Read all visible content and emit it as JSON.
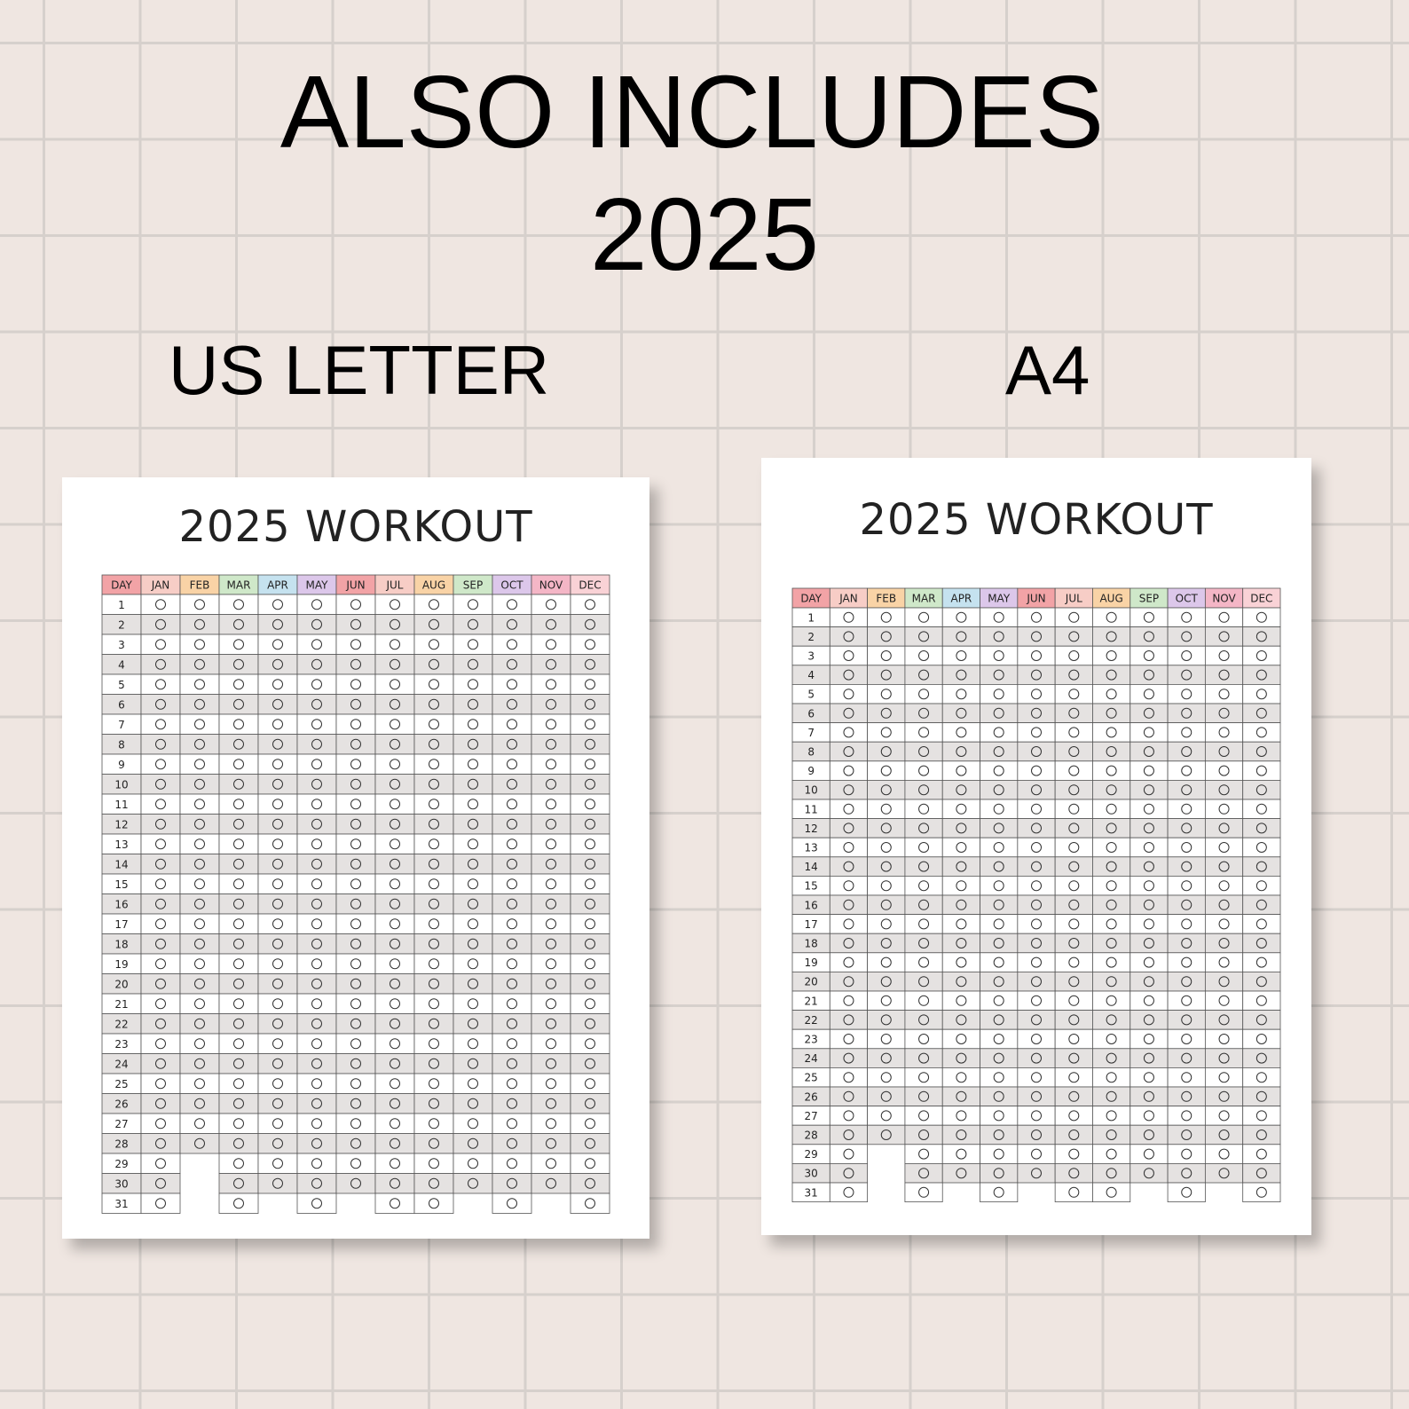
{
  "headline": {
    "line1": "ALSO INCLUDES",
    "line2": "2025"
  },
  "formats": {
    "us_letter": "US LETTER",
    "a4": "A4"
  },
  "days_in_month": [
    31,
    28,
    31,
    30,
    31,
    30,
    31,
    31,
    30,
    31,
    30,
    31
  ],
  "header_colors": [
    "#f2a3a6",
    "#f7cdc6",
    "#f9d3a6",
    "#cfe8c9",
    "#c5e2ef",
    "#dcc7ea",
    "#f2a3a6",
    "#f7cdc6",
    "#f9d3a6",
    "#cfe8c9",
    "#dcc7ea",
    "#f4b6c6",
    "#f9d2d6"
  ],
  "sheets": [
    {
      "title": "2025 WORKOUT",
      "header": [
        "DAY",
        "JAN",
        "FEB",
        "MAR",
        "APR",
        "MAY",
        "JUN",
        "JUL",
        "AUG",
        "SEP",
        "OCT",
        "NOV",
        "DEC"
      ],
      "days": [
        1,
        2,
        3,
        4,
        5,
        6,
        7,
        8,
        9,
        10,
        11,
        12,
        13,
        14,
        15,
        16,
        17,
        18,
        19,
        20,
        21,
        22,
        23,
        24,
        25,
        26,
        27,
        28,
        29,
        30,
        31
      ]
    },
    {
      "title": "2025 WORKOUT",
      "header": [
        "DAY",
        "JAN",
        "FEB",
        "MAR",
        "APR",
        "MAY",
        "JUN",
        "JUL",
        "AUG",
        "SEP",
        "OCT",
        "NOV",
        "DEC"
      ],
      "days": [
        1,
        2,
        3,
        4,
        5,
        6,
        7,
        8,
        9,
        10,
        11,
        12,
        13,
        14,
        15,
        16,
        17,
        18,
        19,
        20,
        21,
        22,
        23,
        24,
        25,
        26,
        27,
        28,
        29,
        30,
        31
      ]
    }
  ]
}
